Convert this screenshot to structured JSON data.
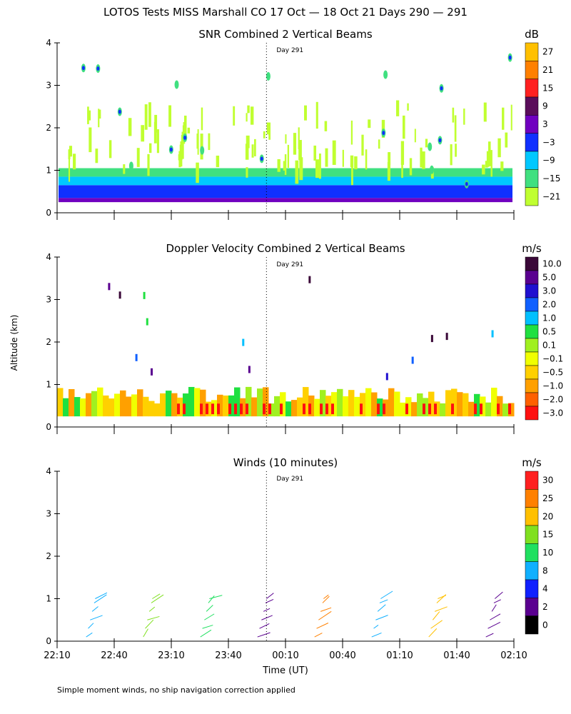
{
  "figure_title": "LOTOS Tests MISS Marshall CO  17 Oct — 18 Oct 21 Days 290 — 291",
  "footnote": "Simple moment winds, no ship navigation correction applied",
  "xlabel": "Time (UT)",
  "ylabel": "Altitude (km)",
  "day_marker_label": "Day 291",
  "chart_data": [
    {
      "type": "heatmap",
      "title": "SNR Combined 2 Vertical Beams",
      "xlabel": "Time (UT)",
      "ylabel": "Altitude (km)",
      "x_ticks": [
        "22:10",
        "22:40",
        "23:10",
        "23:40",
        "00:10",
        "00:40",
        "01:10",
        "01:40",
        "02:10"
      ],
      "xlim_minutes_after_2210": [
        0,
        240
      ],
      "ylim": [
        0,
        4
      ],
      "y_ticks": [
        "0",
        "1",
        "2",
        "3",
        "4"
      ],
      "day_boundary_minutes_after_2210": 110,
      "colorbar": {
        "unit": "dB",
        "labels": [
          "27",
          "21",
          "15",
          "9",
          "3",
          "−3",
          "−9",
          "−15",
          "−21"
        ],
        "colors": [
          "#ffc000",
          "#ff8000",
          "#ff2020",
          "#5a0d5a",
          "#7000c0",
          "#1030ff",
          "#00c8ff",
          "#40e080",
          "#c0ff30"
        ]
      },
      "layers_by_altitude_km": [
        {
          "from": 0.25,
          "to": 0.35,
          "value_db": 3
        },
        {
          "from": 0.35,
          "to": 0.65,
          "value_db": -3
        },
        {
          "from": 0.65,
          "to": 0.85,
          "value_db": -9
        },
        {
          "from": 0.85,
          "to": 1.05,
          "value_db": -15
        },
        {
          "from": 1.05,
          "to": 2.6,
          "value_db": -21,
          "note": "sparse"
        }
      ]
    },
    {
      "type": "heatmap",
      "title": "Doppler Velocity Combined 2 Vertical Beams",
      "xlabel": "Time (UT)",
      "ylabel": "Altitude (km)",
      "x_ticks": [
        "22:10",
        "22:40",
        "23:10",
        "23:40",
        "00:10",
        "00:40",
        "01:10",
        "01:40",
        "02:10"
      ],
      "xlim_minutes_after_2210": [
        0,
        240
      ],
      "ylim": [
        0,
        4
      ],
      "y_ticks": [
        "0",
        "1",
        "2",
        "3",
        "4"
      ],
      "day_boundary_minutes_after_2210": 110,
      "colorbar": {
        "unit": "m/s",
        "labels": [
          "10.0",
          "5.0",
          "3.0",
          "2.0",
          "1.0",
          "0.5",
          "0.1",
          "−0.1",
          "−0.5",
          "−1.0",
          "−2.0",
          "−3.0"
        ],
        "colors": [
          "#3a0838",
          "#5a0090",
          "#2010d0",
          "#1060ff",
          "#00c0ff",
          "#20e040",
          "#a0f020",
          "#f0ff00",
          "#ffd000",
          "#ffa000",
          "#ff6000",
          "#ff1010"
        ]
      },
      "layers_by_altitude_km": [
        {
          "from": 0.25,
          "to": 1.0,
          "value_ms": -0.5,
          "note": "mixed −1.0 to 0.5"
        }
      ]
    },
    {
      "type": "scatter",
      "title": "Winds (10 minutes)",
      "xlabel": "Time (UT)",
      "ylabel": "Altitude (km)",
      "x_ticks": [
        "22:10",
        "22:40",
        "23:10",
        "23:40",
        "00:10",
        "00:40",
        "01:10",
        "01:40",
        "02:10"
      ],
      "xlim_minutes_after_2210": [
        0,
        240
      ],
      "ylim": [
        0,
        4
      ],
      "y_ticks": [
        "0",
        "1",
        "2",
        "3",
        "4"
      ],
      "day_boundary_minutes_after_2210": 110,
      "colorbar": {
        "unit": "m/s",
        "labels": [
          "30",
          "25",
          "20",
          "15",
          "10",
          "8",
          "4",
          "2",
          "0"
        ],
        "colors": [
          "#ff2020",
          "#ff8000",
          "#ffc000",
          "#80e020",
          "#20e060",
          "#10b0ff",
          "#1020ff",
          "#5a0090",
          "#000000"
        ]
      },
      "profile_times_minutes_after_2210": [
        17,
        47,
        77,
        107,
        137,
        167,
        197,
        227
      ],
      "profile_colors": [
        "#10b0ff",
        "#80e020",
        "#20e060",
        "#5a0090",
        "#ff8000",
        "#10b0ff",
        "#ffc000",
        "#5a0090"
      ],
      "wind_altitudes_km": [
        0.1,
        0.3,
        0.5,
        0.7,
        0.9,
        1.0
      ]
    }
  ]
}
